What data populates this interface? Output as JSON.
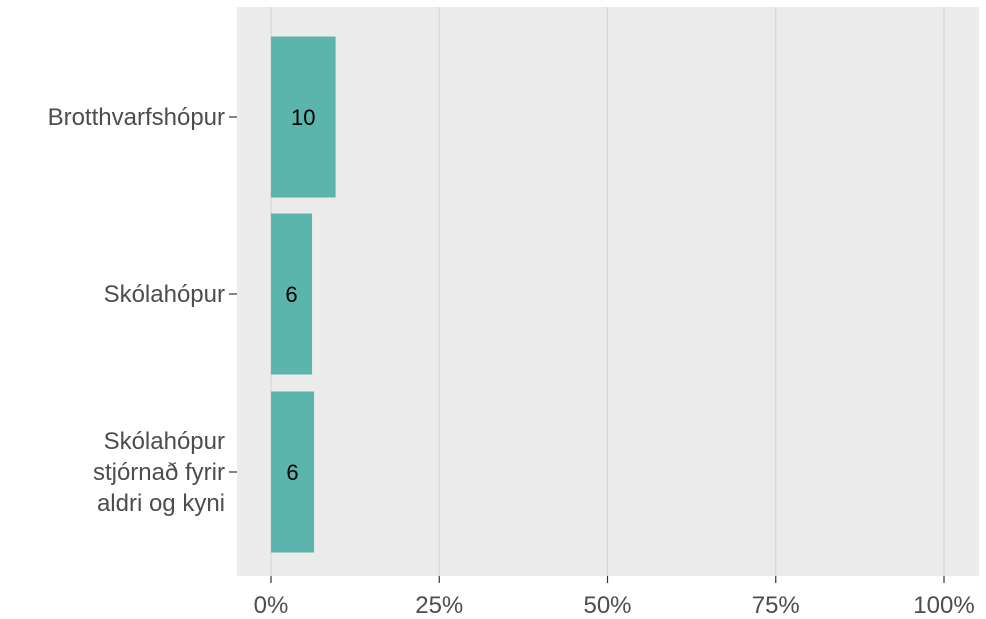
{
  "chart_data": {
    "type": "bar",
    "orientation": "horizontal",
    "categories": [
      [
        "Brotthvarfshópur"
      ],
      [
        "Skólahópur"
      ],
      [
        "Skólahópur",
        "stjórnað fyrir",
        "aldri og kyni"
      ]
    ],
    "values": [
      9.6,
      6.1,
      6.4
    ],
    "value_unit": "percent",
    "data_labels": [
      "10",
      "6",
      "6"
    ],
    "xlim": [
      0,
      100
    ],
    "x_ticks": [
      0,
      25,
      50,
      75,
      100
    ],
    "x_tick_labels": [
      "0%",
      "25%",
      "50%",
      "75%",
      "100%"
    ],
    "grid": true,
    "colors": {
      "bar": "#5bb5ac",
      "panel": "#ebebeb",
      "grid": "#d6d6d6",
      "tick_text": "#4d4d4d"
    }
  }
}
